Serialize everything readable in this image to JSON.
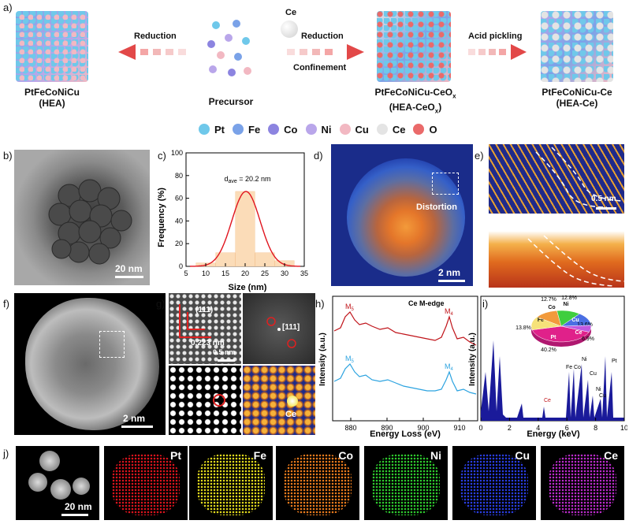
{
  "panel_labels": [
    "a)",
    "b)",
    "c)",
    "d)",
    "e)",
    "f)",
    "g)",
    "h)",
    "i)",
    "j)"
  ],
  "panel_a": {
    "reduction_left": "Reduction",
    "reduction_right": "Reduction",
    "confinement": "Confinement",
    "acid": "Acid pickling",
    "ce_label": "Ce",
    "hea_name": "PtFeCoNiCu",
    "hea_abbr": "(HEA)",
    "precursor": "Precursor",
    "heaceox_name": "PtFeCoNiCu-CeO",
    "heaceox_sub": "x",
    "heaceox_abbr": "(HEA-CeO",
    "heaceox_abbr_sub": "x",
    "heaceox_abbr_end": ")",
    "heace_name": "PtFeCoNiCu-Ce",
    "heace_abbr": "(HEA-Ce)",
    "legend": [
      {
        "label": "Pt",
        "color": "#6fc8ea"
      },
      {
        "label": "Fe",
        "color": "#7aa2e8"
      },
      {
        "label": "Co",
        "color": "#8c84e0"
      },
      {
        "label": "Ni",
        "color": "#b9a6ea"
      },
      {
        "label": "Cu",
        "color": "#f2b8c2"
      },
      {
        "label": "Ce",
        "color": "#e4e4e4"
      },
      {
        "label": "O",
        "color": "#ea6a6a"
      }
    ]
  },
  "panel_b": {
    "scale": "20 nm"
  },
  "chart_data": {
    "type": "bar",
    "panel": "c",
    "title": "",
    "annotation_main": "d",
    "annotation_sub": "ave",
    "annotation_val": " = 20.2 nm",
    "xlabel": "Size (nm)",
    "ylabel": "Frequency (%)",
    "xlim": [
      5,
      35
    ],
    "ylim": [
      0,
      100
    ],
    "xticks": [
      "5",
      "10",
      "15",
      "20",
      "25",
      "30",
      "35"
    ],
    "yticks": [
      "0",
      "20",
      "40",
      "60",
      "80",
      "100"
    ],
    "categories": [
      "10",
      "15",
      "20",
      "25",
      "30"
    ],
    "x": [
      10,
      15,
      20,
      25,
      30
    ],
    "values": [
      3,
      12,
      66,
      12,
      5
    ],
    "fit_mean": 20.2,
    "fit_sigma": 3.6,
    "fit_peak": 66
  },
  "panel_d": {
    "label": "Distortion",
    "scale": "2 nm"
  },
  "panel_e": {
    "scale": "0.5 nm"
  },
  "panel_f": {
    "scale": "2 nm"
  },
  "panel_g": {
    "plane": "(111)",
    "dspacing": "0.223 nm",
    "scale": "0.5 nm",
    "zone": "[111]",
    "ce": "Ce"
  },
  "panel_h": {
    "title": "Ce M-edge",
    "xlabel": "Energy Loss (eV)",
    "ylabel": "Intensity (a.u.)",
    "xticks": [
      "880",
      "890",
      "900",
      "910"
    ],
    "m5": "M",
    "m5_sub": "5",
    "m4": "M",
    "m4_sub": "4"
  },
  "panel_i": {
    "xlabel": "Energy (keV)",
    "ylabel": "Intensity (a.u.)",
    "xticks": [
      "0",
      "2",
      "4",
      "6",
      "8",
      "10"
    ],
    "peaks": {
      "ce": "Ce",
      "fe": "Fe",
      "co": "Co",
      "ni": "Ni",
      "cu": "Cu",
      "ni2": "Ni",
      "cu2": "Cu",
      "pt": "Pt"
    },
    "pie": [
      {
        "label": "Pt",
        "pct": "40.2%",
        "value": 40.2,
        "color": "#e0218a"
      },
      {
        "label": "Fe",
        "pct": "13.8%",
        "value": 13.8,
        "color": "#f6e27a"
      },
      {
        "label": "Co",
        "pct": "12.7%",
        "value": 12.7,
        "color": "#f29a3b"
      },
      {
        "label": "Ni",
        "pct": "12.8%",
        "value": 12.8,
        "color": "#3fce3f"
      },
      {
        "label": "Cu",
        "pct": "13.6%",
        "value": 13.6,
        "color": "#4a6fe3"
      },
      {
        "label": "Ce",
        "pct": "6.9%",
        "value": 6.9,
        "color": "#c05ae0"
      }
    ]
  },
  "panel_j": {
    "scale": "20 nm",
    "maps": [
      {
        "label": "Pt",
        "color": "#e0141e"
      },
      {
        "label": "Fe",
        "color": "#e8e01e"
      },
      {
        "label": "Co",
        "color": "#f07e1e"
      },
      {
        "label": "Ni",
        "color": "#2fd12f"
      },
      {
        "label": "Cu",
        "color": "#2a3fe8"
      },
      {
        "label": "Ce",
        "color": "#c02cd0"
      }
    ]
  }
}
